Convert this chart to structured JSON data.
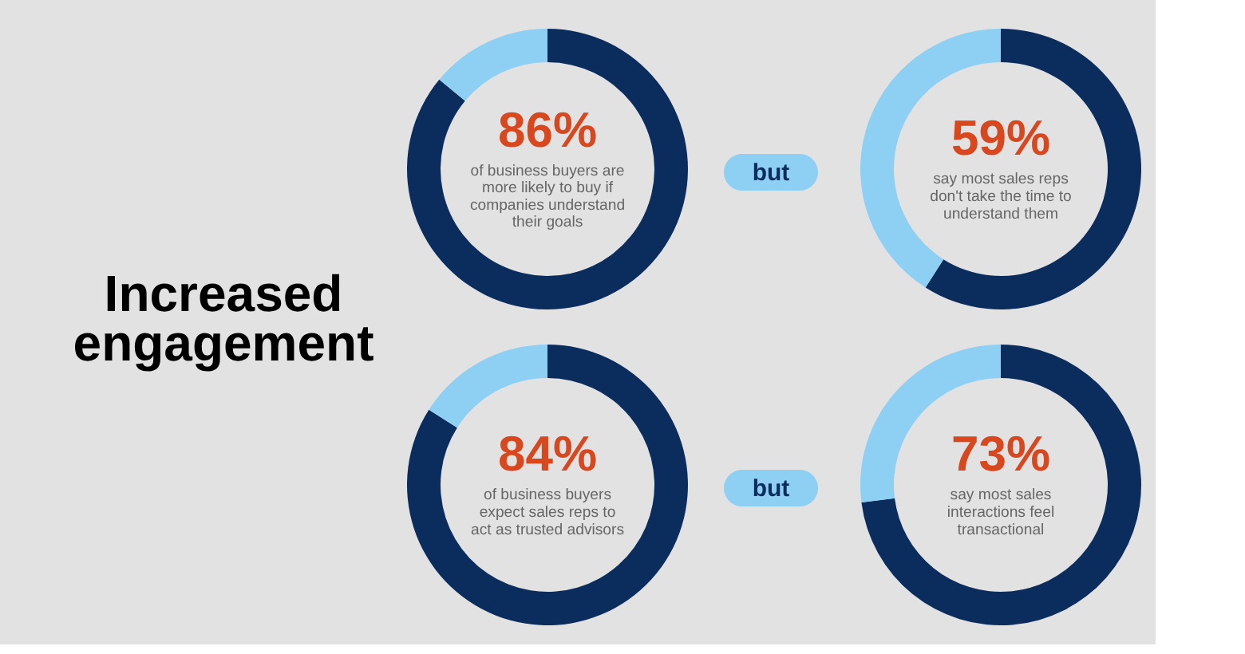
{
  "chart_data": [
    {
      "type": "other",
      "title": "Increased engagement",
      "annotations": [
        "but",
        "but"
      ]
    },
    {
      "type": "donut",
      "categories": [
        null,
        null
      ],
      "values": [
        86,
        14
      ],
      "colors": [
        "#0b2d5e",
        "#8ecff4"
      ],
      "value_labels": [
        "86%",
        null
      ],
      "annotations": [
        "of business buyers are more likely to buy if companies understand their goals"
      ]
    },
    {
      "type": "donut",
      "categories": [
        null,
        null
      ],
      "values": [
        59,
        41
      ],
      "colors": [
        "#0b2d5e",
        "#8ecff4"
      ],
      "value_labels": [
        "59%",
        null
      ],
      "annotations": [
        "say most sales reps don't take the time to understand them"
      ]
    },
    {
      "type": "donut",
      "categories": [
        null,
        null
      ],
      "values": [
        84,
        16
      ],
      "colors": [
        "#0b2d5e",
        "#8ecff4"
      ],
      "value_labels": [
        "84%",
        null
      ],
      "annotations": [
        "of business buyers expect sales reps to act as trusted advisors"
      ]
    },
    {
      "type": "donut",
      "categories": [
        null,
        null
      ],
      "values": [
        73,
        27
      ],
      "colors": [
        "#0b2d5e",
        "#8ecff4"
      ],
      "value_labels": [
        "73%",
        null
      ],
      "annotations": [
        "say most sales interactions feel transactional"
      ]
    }
  ]
}
